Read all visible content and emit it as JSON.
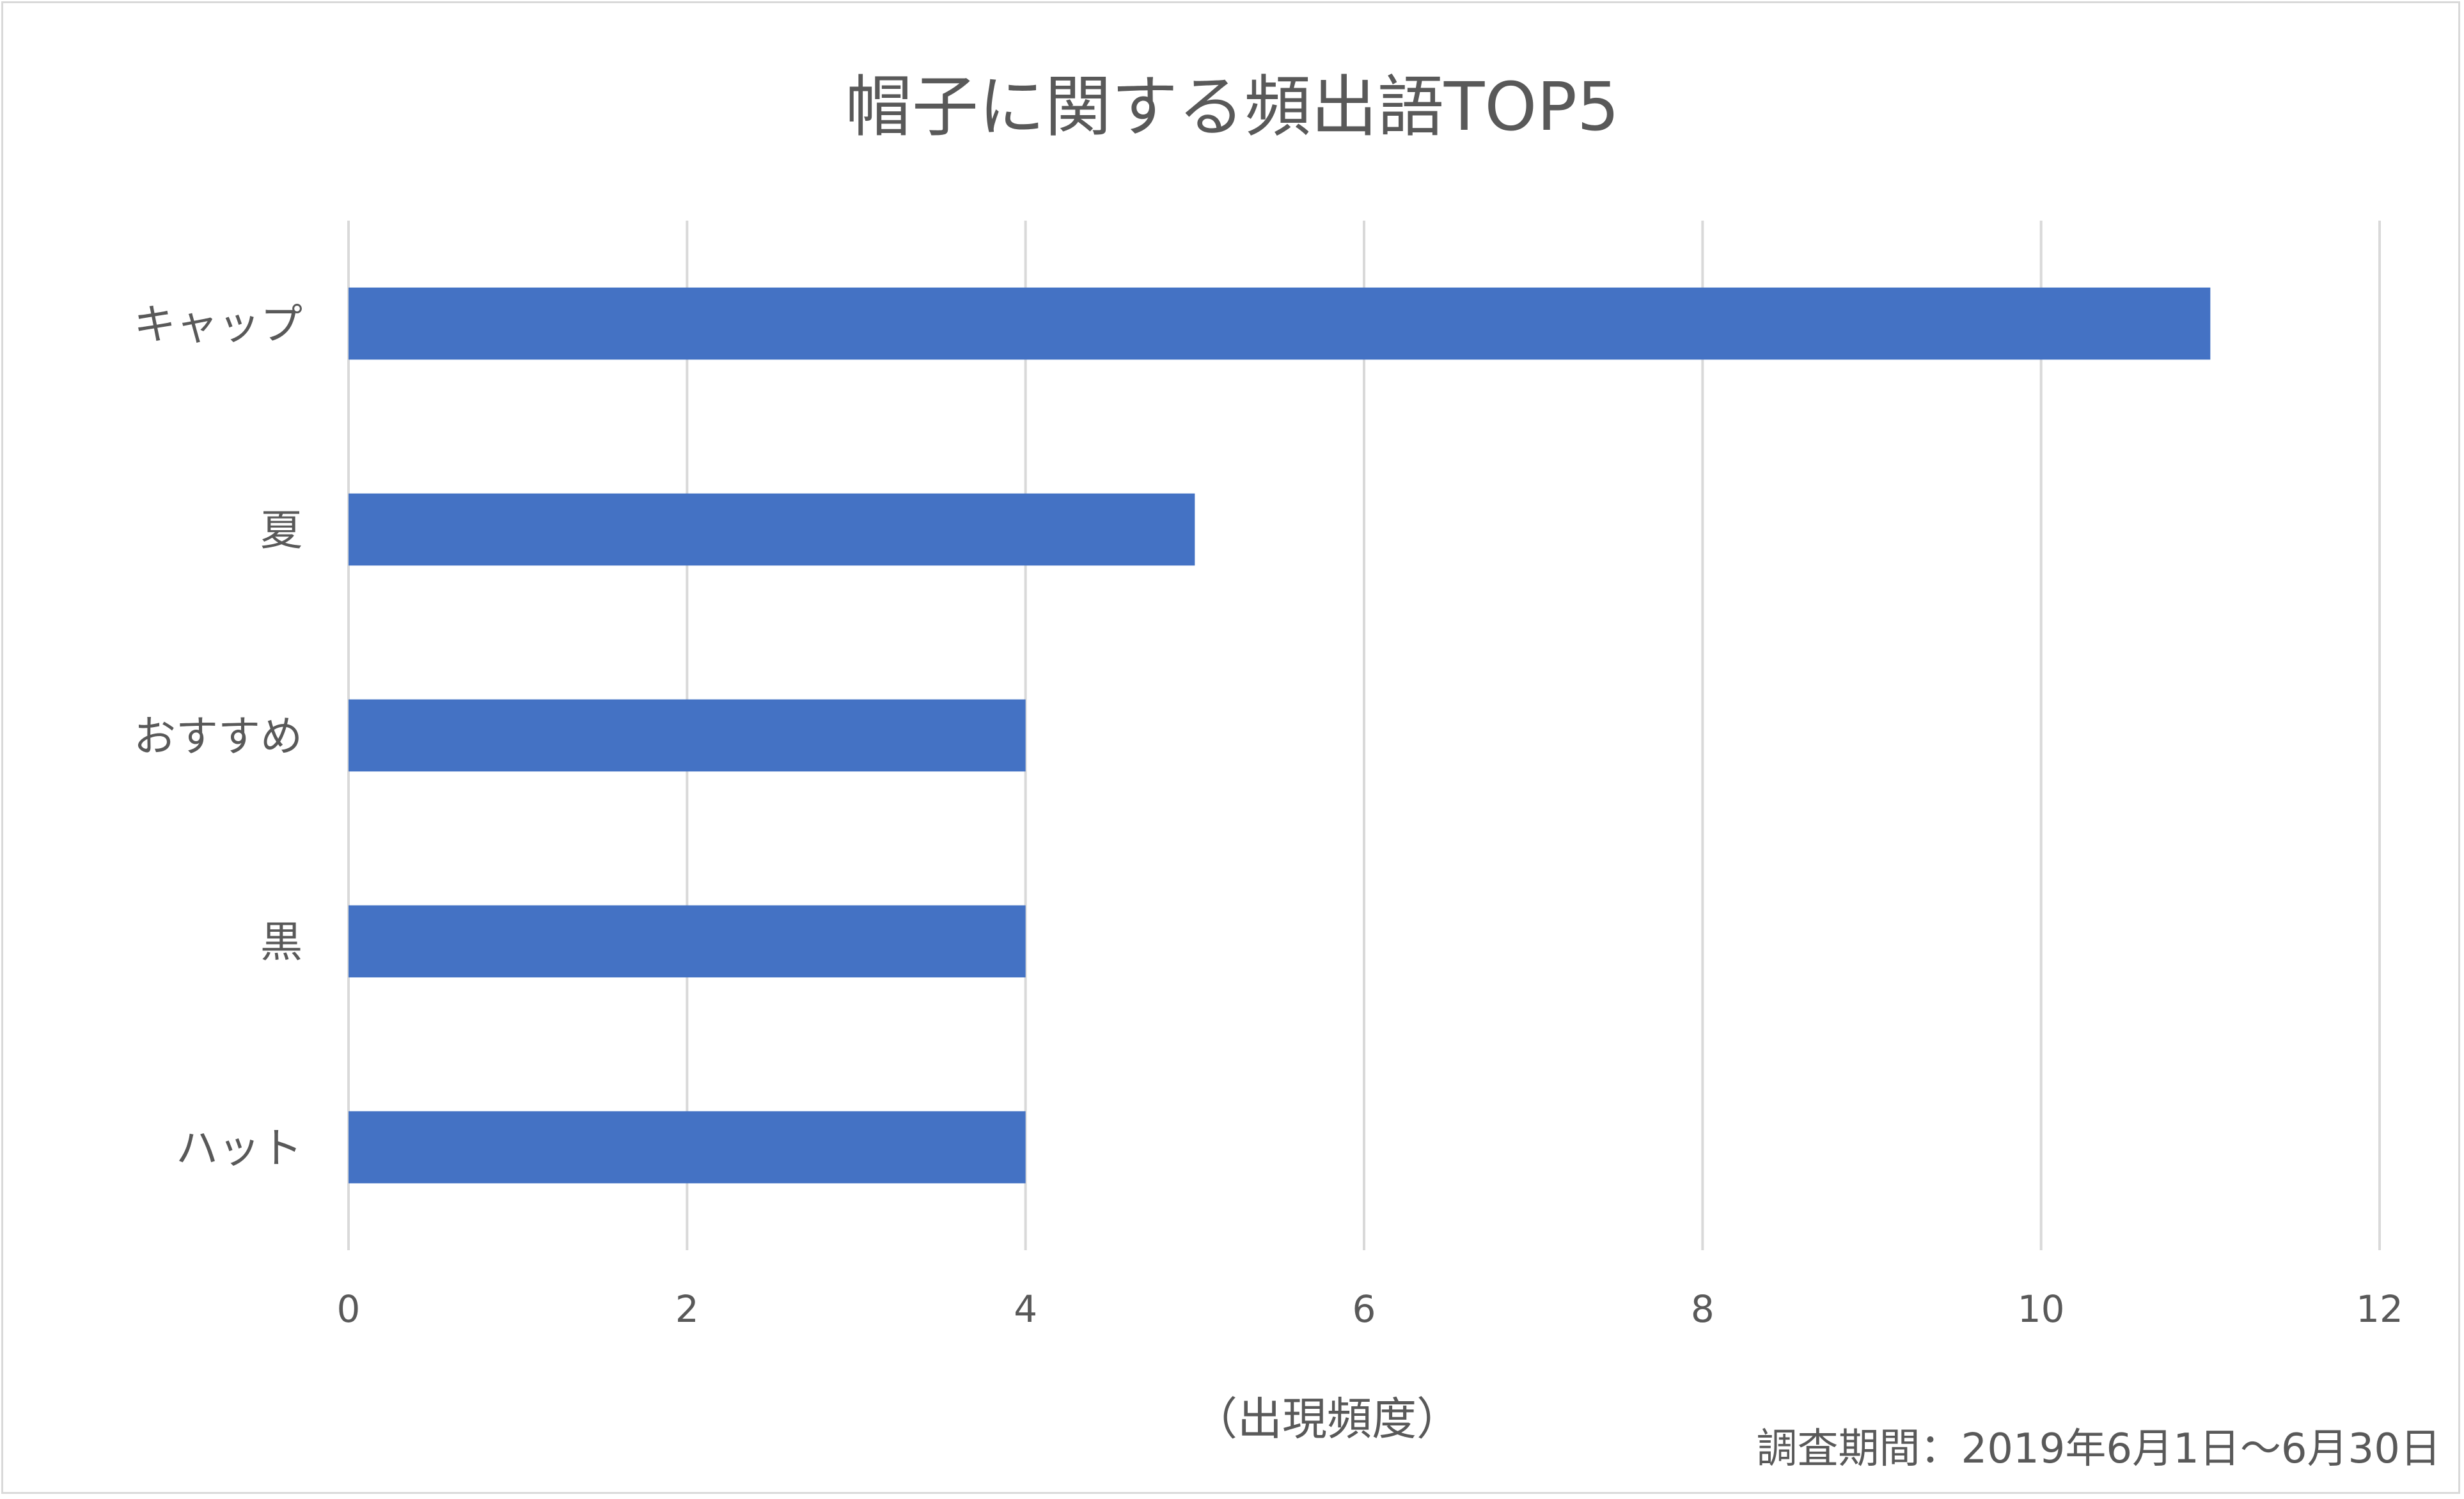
{
  "chart_data": {
    "type": "bar",
    "orientation": "horizontal",
    "title": "帽子に関する頻出語TOP5",
    "categories": [
      "キャップ",
      "夏",
      "おすすめ",
      "黒",
      "ハット"
    ],
    "values": [
      11,
      5,
      4,
      4,
      4
    ],
    "xlabel": "（出現頻度）",
    "ylabel": "",
    "xlim": [
      0,
      12
    ],
    "xticks": [
      "0",
      "2",
      "4",
      "6",
      "8",
      "10",
      "12"
    ],
    "grid": true,
    "legend": "none",
    "annotation": "調査期間：2019年6月1日～6月30日",
    "colors": {
      "bar": "#4472C4",
      "grid": "#d9d9d9",
      "text": "#595959"
    }
  }
}
